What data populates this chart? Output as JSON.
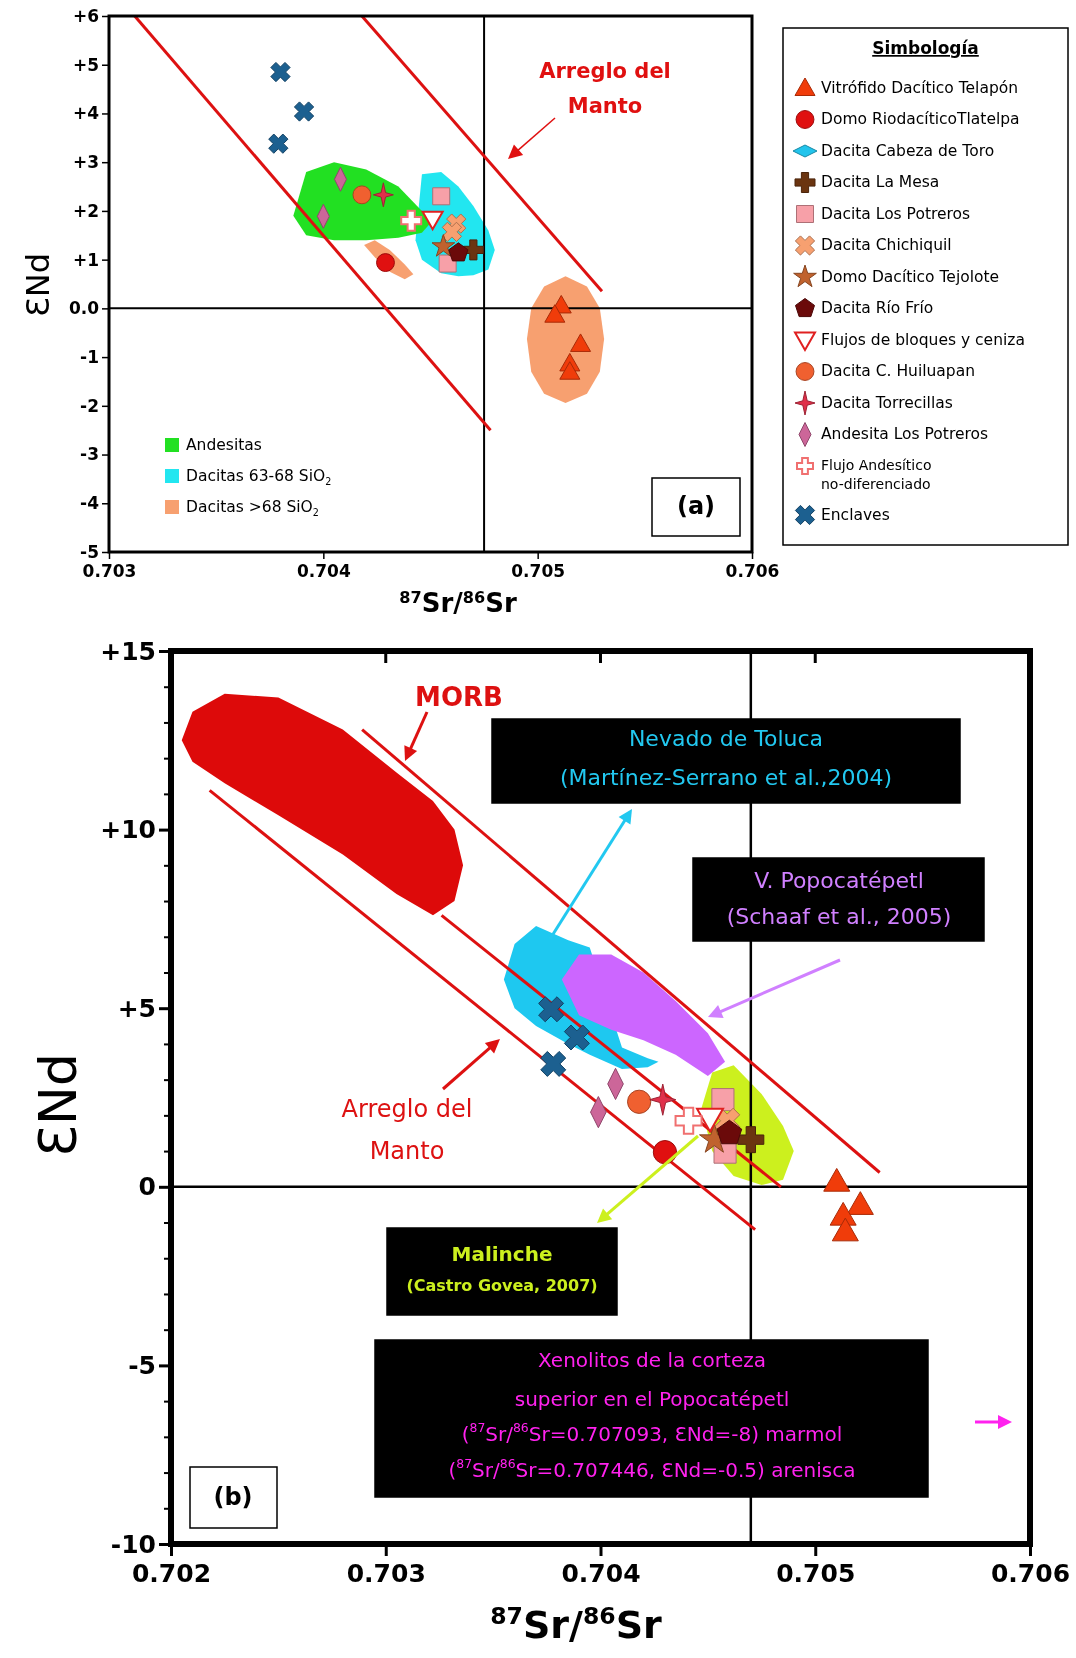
{
  "chart_data": [
    {
      "type": "scatter",
      "xlabel": "$^{87}$Sr/$^{86}$Sr",
      "ylabel": "ƐNd",
      "legend": "right",
      "legend_title": "Simbología",
      "xlim": [
        0.703,
        0.706
      ],
      "xticks": [
        0.703,
        0.704,
        0.705,
        0.706
      ],
      "ylim": [
        -5,
        6
      ],
      "yticks": [
        {
          "value": 6,
          "label": "+6"
        },
        {
          "value": 5,
          "label": "+5"
        },
        {
          "value": 4,
          "label": "+4"
        },
        {
          "value": 3,
          "label": "+3"
        },
        {
          "value": 2,
          "label": "+2"
        },
        {
          "value": 1,
          "label": "+1"
        },
        {
          "value": 0,
          "label": "0.0"
        },
        -1,
        -2,
        -3,
        -4,
        -5
      ],
      "ref_lines": [
        {
          "axis": "x",
          "value": 0.70475,
          "color": "#000000"
        },
        {
          "axis": "y",
          "value": 0,
          "color": "#000000"
        }
      ],
      "annotations": [
        "Arreglo del\nManto",
        "(a)"
      ],
      "series": [
        {
          "type": "area",
          "name": "Dacitas 63-68 SiO$_{2}$",
          "color": "#22e6f0",
          "x": [
            0.70443,
            0.70446,
            0.70455,
            0.70463,
            0.7047,
            0.70477,
            0.7048
          ],
          "values": [
            null,
            null,
            null,
            null,
            null,
            null,
            null
          ],
          "upper": [
            1.4,
            2.75,
            2.8,
            2.5,
            2.1,
            1.6,
            1.2
          ],
          "lower": [
            1.4,
            1.0,
            0.72,
            0.66,
            0.68,
            0.8,
            1.2
          ]
        },
        {
          "type": "area",
          "name": "Andesitas",
          "color": "#22e022",
          "x": [
            0.70386,
            0.70392,
            0.70405,
            0.7042,
            0.70435,
            0.70446,
            0.7045
          ],
          "values": [
            null,
            null,
            null,
            null,
            null,
            null,
            null
          ],
          "upper": [
            1.9,
            2.8,
            3.0,
            2.85,
            2.5,
            2.0,
            1.75
          ],
          "lower": [
            1.9,
            1.5,
            1.4,
            1.4,
            1.45,
            1.55,
            1.75
          ]
        },
        {
          "type": "area",
          "name": "Dacitas >68 SiO$_{2}$",
          "color": "#f7a070",
          "x": [
            0.70495,
            0.70497,
            0.70503,
            0.70513,
            0.70523,
            0.70529,
            0.70531
          ],
          "values": [
            null,
            null,
            null,
            null,
            null,
            null,
            null
          ],
          "upper": [
            -0.63,
            0.0,
            0.45,
            0.66,
            0.45,
            0.0,
            -0.63
          ],
          "lower": [
            -0.63,
            -1.3,
            -1.75,
            -1.94,
            -1.75,
            -1.3,
            -0.63
          ]
        },
        {
          "type": "area",
          "color": "#f7a070",
          "x": [
            0.70419,
            0.70424,
            0.70431,
            0.70438,
            0.70442
          ],
          "values": [
            null,
            null,
            null,
            null,
            null
          ],
          "upper": [
            1.3,
            1.4,
            1.2,
            0.9,
            0.7
          ],
          "lower": [
            1.3,
            1.05,
            0.75,
            0.6,
            0.7
          ]
        },
        {
          "type": "line",
          "color": "#dd1111",
          "x": [
            0.70312,
            0.70478
          ],
          "values": [
            6.0,
            -2.5
          ]
        },
        {
          "type": "line",
          "color": "#dd1111",
          "x": [
            0.70418,
            0.7053
          ],
          "values": [
            6.0,
            0.35
          ]
        },
        {
          "name": "Vitrófido Dacítico Telapón",
          "color": "#f03c0a",
          "marker": "triangle",
          "x": [
            0.70511,
            0.70508,
            0.7052,
            0.70515,
            0.70515
          ],
          "values": [
            0.06,
            -0.13,
            -0.73,
            -1.13,
            -1.3
          ]
        },
        {
          "name": "Domo RiodacíticoTlatelpa",
          "color": "#e01010",
          "marker": "circle",
          "x": [
            0.70429
          ],
          "values": [
            0.94
          ]
        },
        {
          "name": "Dacita Cabeza de Toro",
          "color": "#22c4ec",
          "marker": "diamond-wide"
        },
        {
          "name": "Dacita La Mesa",
          "color": "#6b3410",
          "marker": "cross",
          "x": [
            0.7047
          ],
          "values": [
            1.2
          ]
        },
        {
          "name": "Dacita Los Potreros",
          "color": "#f7a0a8",
          "marker": "square",
          "x": [
            0.70455,
            0.70458
          ],
          "values": [
            2.3,
            0.92
          ]
        },
        {
          "name": "Dacita Chichiquil",
          "color": "#f7a070",
          "marker": "x",
          "x": [
            0.70462,
            0.7046
          ],
          "values": [
            1.74,
            1.57
          ]
        },
        {
          "name": "Domo Dacítico Tejolote",
          "color": "#c0622e",
          "marker": "star",
          "x": [
            0.70456
          ],
          "values": [
            1.27
          ]
        },
        {
          "name": "Dacita Río Frío",
          "color": "#6b0a0a",
          "x": [
            0.70463
          ],
          "values": [
            1.14
          ]
        },
        {
          "name": "Flujos de bloques y ceniza",
          "color": "#e02020",
          "marker": "triangle-down-open",
          "x": [
            0.70451
          ],
          "values": [
            1.83
          ]
        },
        {
          "name": "Dacita C. Huiluapan",
          "color": "#f06030",
          "marker": "circle",
          "x": [
            0.70418
          ],
          "values": [
            2.33
          ]
        },
        {
          "name": "Dacita Torrecillas",
          "color": "#e0304a",
          "marker": "star4",
          "x": [
            0.70428
          ],
          "values": [
            2.33
          ]
        },
        {
          "name": "Andesita Los Potreros",
          "color": "#cc6699",
          "marker": "diamond",
          "x": [
            0.70408,
            0.704
          ],
          "values": [
            2.65,
            1.89
          ]
        },
        {
          "name": "Flujo Andesítico no-diferenciado",
          "color": "#f07070",
          "marker": "cross-open",
          "x": [
            0.70441
          ],
          "values": [
            1.8
          ]
        },
        {
          "name": "Enclaves",
          "color": "#1c6090",
          "marker": "x",
          "x": [
            0.7038,
            0.70391,
            0.70379
          ],
          "values": [
            4.85,
            4.04,
            3.38
          ]
        }
      ]
    },
    {
      "type": "scatter",
      "xlabel": "$^{87}$Sr/$^{86}$Sr",
      "ylabel": "ƐNd",
      "xlim": [
        0.702,
        0.706
      ],
      "xticks": [
        0.702,
        0.703,
        0.704,
        0.705,
        0.706
      ],
      "ylim": [
        -10,
        15
      ],
      "yticks": [
        {
          "value": 15,
          "label": "+15"
        },
        {
          "value": 14,
          "label": null
        },
        {
          "value": 13,
          "label": null
        },
        {
          "value": 12,
          "label": null
        },
        {
          "value": 11,
          "label": null
        },
        {
          "value": 10,
          "label": "+10"
        },
        {
          "value": 9,
          "label": null
        },
        {
          "value": 8,
          "label": null
        },
        {
          "value": 7,
          "label": null
        },
        {
          "value": 6,
          "label": null
        },
        {
          "value": 5,
          "label": "+5"
        },
        {
          "value": 4,
          "label": null
        },
        {
          "value": 3,
          "label": null
        },
        {
          "value": 2,
          "label": null
        },
        {
          "value": 1,
          "label": null
        },
        0,
        {
          "value": -1,
          "label": null
        },
        {
          "value": -2,
          "label": null
        },
        {
          "value": -3,
          "label": null
        },
        {
          "value": -4,
          "label": null
        },
        -5,
        {
          "value": -6,
          "label": null
        },
        {
          "value": -7,
          "label": null
        },
        {
          "value": -8,
          "label": null
        },
        {
          "value": -9,
          "label": null
        },
        -10
      ],
      "ref_lines": [
        {
          "axis": "x",
          "value": 0.7047,
          "color": "#000000"
        },
        {
          "axis": "y",
          "value": 0,
          "color": "#000000"
        }
      ],
      "annotations": [
        "MORB",
        "Nevado de Toluca\n(Martínez-Serrano et al.,2004)",
        "V. Popocatépetl\n(Schaaf et al., 2005)",
        "Arreglo del\nManto",
        "Malinche\n(Castro Govea, 2007)",
        "Xenolitos de la corteza\nsuperior en el Popocatépetl\n($^{87}$Sr/$^{86}$Sr=0.707093, ƐNd=-8) marmol\n($^{87}$Sr/$^{86}$Sr=0.707446, ƐNd=-0.5) arenisca",
        "(b)"
      ],
      "series": [
        {
          "type": "area",
          "color": "#dd0a0a",
          "x": [
            0.70205,
            0.7021,
            0.70225,
            0.7025,
            0.7028,
            0.70305,
            0.70322,
            0.70332,
            0.70336
          ],
          "values": [
            null,
            null,
            null,
            null,
            null,
            null,
            null,
            null,
            null
          ],
          "upper": [
            12.5,
            13.3,
            13.8,
            13.7,
            12.8,
            11.6,
            10.8,
            10.0,
            9.0
          ],
          "lower": [
            12.5,
            11.9,
            11.3,
            10.4,
            9.3,
            8.2,
            7.6,
            8.0,
            9.0
          ]
        },
        {
          "type": "area",
          "color": "#1ec8f0",
          "x": [
            0.70355,
            0.7036,
            0.7037,
            0.70385,
            0.70395,
            0.7041,
            0.70422,
            0.70427
          ],
          "values": [
            null,
            null,
            null,
            null,
            null,
            null,
            null,
            null
          ],
          "upper": [
            5.8,
            6.8,
            7.3,
            6.9,
            6.7,
            3.9,
            3.6,
            3.5
          ],
          "lower": [
            5.8,
            5.0,
            4.5,
            4.0,
            3.7,
            3.3,
            3.35,
            3.5
          ]
        },
        {
          "type": "area",
          "color": "#cc66ff",
          "x": [
            0.70382,
            0.7039,
            0.70405,
            0.7042,
            0.70435,
            0.7045,
            0.70458
          ],
          "values": [
            null,
            null,
            null,
            null,
            null,
            null,
            null
          ],
          "upper": [
            5.8,
            6.5,
            6.5,
            6.0,
            5.2,
            4.3,
            3.5
          ],
          "lower": [
            5.8,
            4.8,
            4.4,
            4.1,
            3.7,
            3.1,
            3.5
          ]
        },
        {
          "type": "area",
          "color": "#ccf01e",
          "x": [
            0.70447,
            0.70452,
            0.70462,
            0.70475,
            0.70485,
            0.7049
          ],
          "values": [
            null,
            null,
            null,
            null,
            null,
            null
          ],
          "upper": [
            2.2,
            3.2,
            3.4,
            2.6,
            1.7,
            1.0
          ],
          "lower": [
            2.2,
            1.0,
            0.3,
            0.05,
            0.2,
            1.0
          ]
        },
        {
          "type": "line",
          "color": "#dd1111",
          "x": [
            0.70218,
            0.70472
          ],
          "values": [
            11.1,
            -1.2
          ]
        },
        {
          "type": "line",
          "color": "#dd1111",
          "x": [
            0.70289,
            0.7053
          ],
          "values": [
            12.8,
            0.4
          ]
        },
        {
          "type": "line",
          "color": "#dd1111",
          "x": [
            0.70326,
            0.70484
          ],
          "values": [
            7.6,
            0.0
          ]
        },
        {
          "color": "#f03c0a",
          "marker": "triangle",
          "x": [
            0.7051,
            0.70521,
            0.70513,
            0.70514
          ],
          "values": [
            0.15,
            -0.5,
            -0.8,
            -1.24
          ]
        },
        {
          "color": "#e01010",
          "marker": "circle",
          "x": [
            0.7043
          ],
          "values": [
            0.97
          ]
        },
        {
          "color": "#6b3410",
          "marker": "cross",
          "x": [
            0.7047
          ],
          "values": [
            1.32
          ]
        },
        {
          "color": "#f7a0a8",
          "marker": "square",
          "x": [
            0.70457,
            0.70458
          ],
          "values": [
            2.44,
            0.97
          ]
        },
        {
          "color": "#f7a070",
          "marker": "x",
          "x": [
            0.70459
          ],
          "values": [
            1.85
          ]
        },
        {
          "color": "#c0622e",
          "marker": "star",
          "x": [
            0.70453
          ],
          "values": [
            1.32
          ]
        },
        {
          "color": "#6b0a0a",
          "x": [
            0.7046
          ],
          "values": [
            1.5
          ]
        },
        {
          "color": "#e02020",
          "marker": "triangle-down-open",
          "x": [
            0.70451
          ],
          "values": [
            1.91
          ]
        },
        {
          "color": "#f06030",
          "marker": "circle",
          "x": [
            0.70418
          ],
          "values": [
            2.38
          ]
        },
        {
          "color": "#e0304a",
          "marker": "star4",
          "x": [
            0.70429
          ],
          "values": [
            2.44
          ]
        },
        {
          "color": "#cc6699",
          "marker": "diamond",
          "x": [
            0.70407,
            0.70399
          ],
          "values": [
            2.88,
            2.09
          ]
        },
        {
          "color": "#f07070",
          "marker": "cross-open",
          "x": [
            0.70441
          ],
          "values": [
            1.85
          ]
        },
        {
          "color": "#1c6090",
          "marker": "x",
          "x": [
            0.70377,
            0.70389,
            0.70378
          ],
          "values": [
            4.97,
            4.18,
            3.44
          ]
        }
      ]
    }
  ]
}
